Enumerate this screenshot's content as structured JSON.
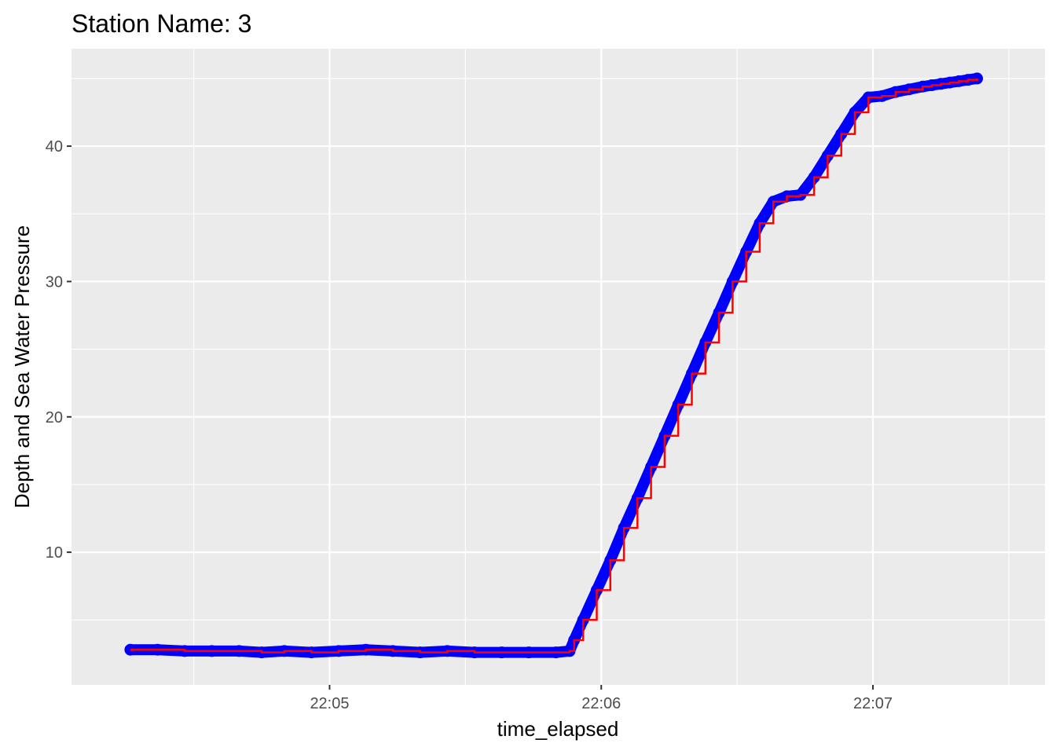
{
  "chart_data": {
    "type": "line",
    "title": "Station Name: 3",
    "xlabel": "time_elapsed",
    "ylabel": "Depth and Sea Water Pressure",
    "x_range_seconds_of_day": [
      79443,
      79658
    ],
    "x_ticks": [
      {
        "t": 79500,
        "label": "22:05"
      },
      {
        "t": 79560,
        "label": "22:06"
      },
      {
        "t": 79620,
        "label": "22:07"
      }
    ],
    "ylim": [
      0.2,
      47.2
    ],
    "y_ticks": [
      10,
      20,
      30,
      40
    ],
    "grid": true,
    "point_color": "#0000ff",
    "line_color": "#ff0000",
    "panel_background": "#ebebeb",
    "series": [
      {
        "x_time": [
          "22:04:16",
          "22:04:22",
          "22:04:28",
          "22:04:34",
          "22:04:40",
          "22:04:45",
          "22:04:50",
          "22:04:56",
          "22:05:02",
          "22:05:08",
          "22:05:14",
          "22:05:20",
          "22:05:26",
          "22:05:32",
          "22:05:38",
          "22:05:44",
          "22:05:50",
          "22:05:53",
          "22:05:54",
          "22:05:56",
          "22:05:59",
          "22:06:02",
          "22:06:05",
          "22:06:08",
          "22:06:11",
          "22:06:14",
          "22:06:17",
          "22:06:20",
          "22:06:23",
          "22:06:26",
          "22:06:29",
          "22:06:32",
          "22:06:35",
          "22:06:38",
          "22:06:41",
          "22:06:44",
          "22:06:47",
          "22:06:50",
          "22:06:53",
          "22:06:56",
          "22:06:59",
          "22:07:02",
          "22:07:05",
          "22:07:08",
          "22:07:11",
          "22:07:13",
          "22:07:15",
          "22:07:17",
          "22:07:19",
          "22:07:21",
          "22:07:23"
        ],
        "x": [
          79456,
          79462,
          79468,
          79474,
          79480,
          79485,
          79490,
          79496,
          79502,
          79508,
          79514,
          79520,
          79526,
          79532,
          79538,
          79544,
          79550,
          79553,
          79554,
          79556,
          79559,
          79562,
          79565,
          79568,
          79571,
          79574,
          79577,
          79580,
          79583,
          79586,
          79589,
          79592,
          79595,
          79598,
          79601,
          79604,
          79607,
          79610,
          79613,
          79616,
          79619,
          79622,
          79625,
          79628,
          79631,
          79633,
          79635,
          79637,
          79639,
          79641,
          79643
        ],
        "y": [
          2.8,
          2.8,
          2.7,
          2.7,
          2.7,
          2.6,
          2.7,
          2.6,
          2.7,
          2.8,
          2.7,
          2.6,
          2.7,
          2.6,
          2.6,
          2.6,
          2.6,
          2.7,
          3.5,
          5.0,
          7.2,
          9.4,
          11.8,
          14.0,
          16.3,
          18.6,
          20.9,
          23.2,
          25.5,
          27.7,
          30.0,
          32.2,
          34.3,
          35.9,
          36.3,
          36.4,
          37.7,
          39.3,
          40.9,
          42.5,
          43.6,
          43.7,
          44.0,
          44.2,
          44.4,
          44.5,
          44.6,
          44.7,
          44.8,
          44.9,
          45.0
        ]
      }
    ]
  }
}
